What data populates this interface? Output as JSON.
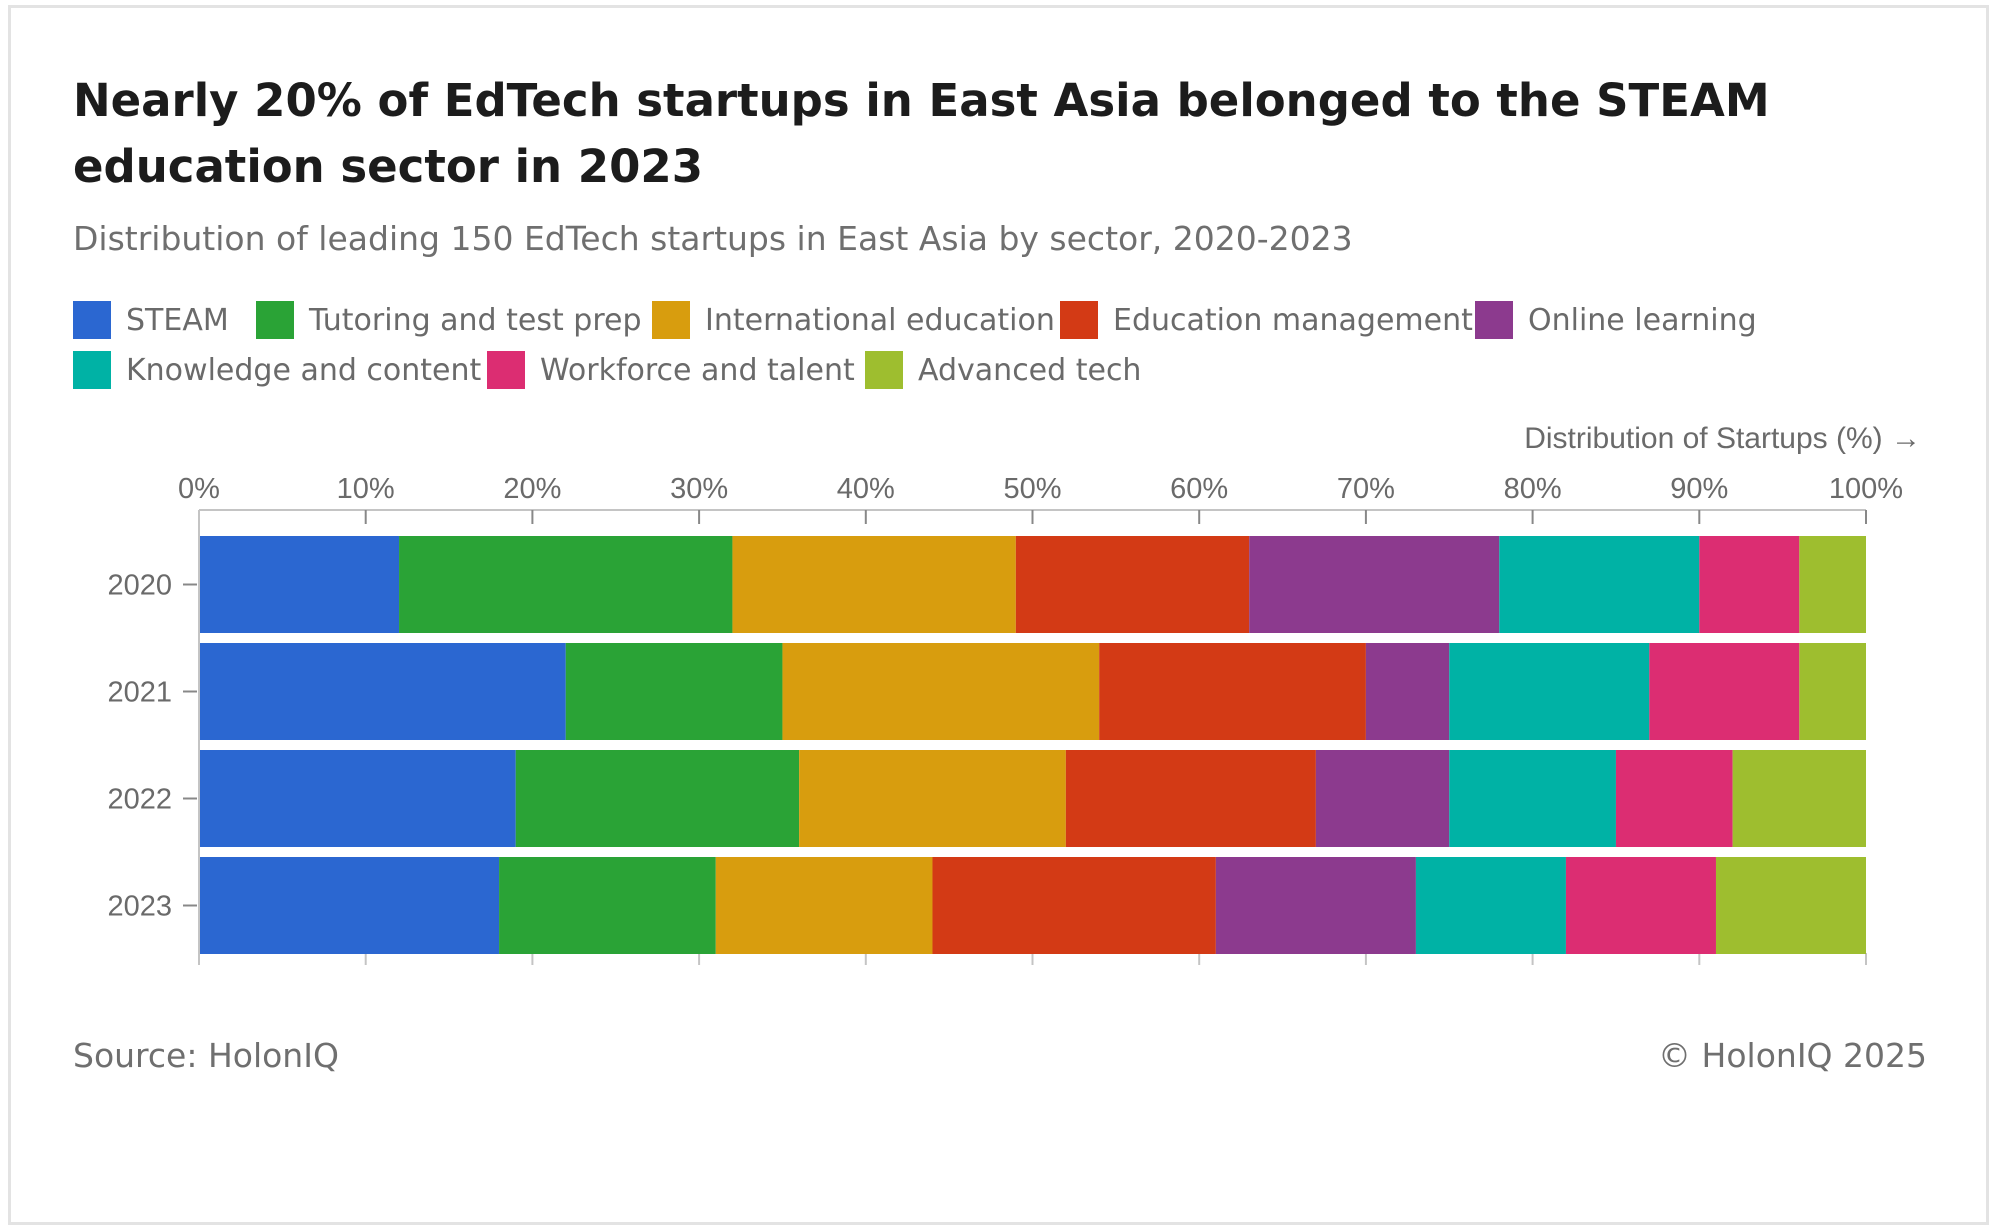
{
  "title": "Nearly 20% of EdTech startups in East Asia belonged to the STEAM education sector in 2023",
  "subtitle": "Distribution of leading 150 EdTech startups in East Asia by sector, 2020-2023",
  "footer": {
    "source": "Source: HolonIQ",
    "copyright": "© HolonIQ 2025"
  },
  "chart_data": {
    "type": "bar",
    "orientation": "horizontal",
    "stacked": true,
    "title": "Nearly 20% of EdTech startups in East Asia belonged to the STEAM education sector in 2023",
    "subtitle": "Distribution of leading 150 EdTech startups in East Asia by sector, 2020-2023",
    "xlabel": "Distribution of Startups (%) →",
    "ylabel": "",
    "xlim": [
      0,
      100
    ],
    "x_ticks": [
      "0%",
      "10%",
      "20%",
      "30%",
      "40%",
      "50%",
      "60%",
      "70%",
      "80%",
      "90%",
      "100%"
    ],
    "x_tick_values": [
      0,
      10,
      20,
      30,
      40,
      50,
      60,
      70,
      80,
      90,
      100
    ],
    "x_axis_position": "top",
    "categories": [
      "2020",
      "2021",
      "2022",
      "2023"
    ],
    "legend_position": "top-left",
    "grid": false,
    "series": [
      {
        "name": "STEAM",
        "color": "#2b67d1",
        "values": [
          12,
          22,
          19,
          18
        ]
      },
      {
        "name": "Tutoring and test prep",
        "color": "#2aa336",
        "values": [
          20,
          13,
          17,
          13
        ]
      },
      {
        "name": "International education",
        "color": "#d89d0e",
        "values": [
          17,
          19,
          16,
          13
        ]
      },
      {
        "name": "Education management",
        "color": "#d33a15",
        "values": [
          14,
          16,
          15,
          17
        ]
      },
      {
        "name": "Online learning",
        "color": "#8c3a8e",
        "values": [
          15,
          5,
          8,
          12
        ]
      },
      {
        "name": "Knowledge and content",
        "color": "#00b2a5",
        "values": [
          12,
          12,
          10,
          9
        ]
      },
      {
        "name": "Workforce and talent",
        "color": "#dc2d72",
        "values": [
          6,
          9,
          7,
          9
        ]
      },
      {
        "name": "Advanced tech",
        "color": "#9ebe2f",
        "values": [
          4,
          4,
          8,
          9
        ]
      }
    ]
  }
}
